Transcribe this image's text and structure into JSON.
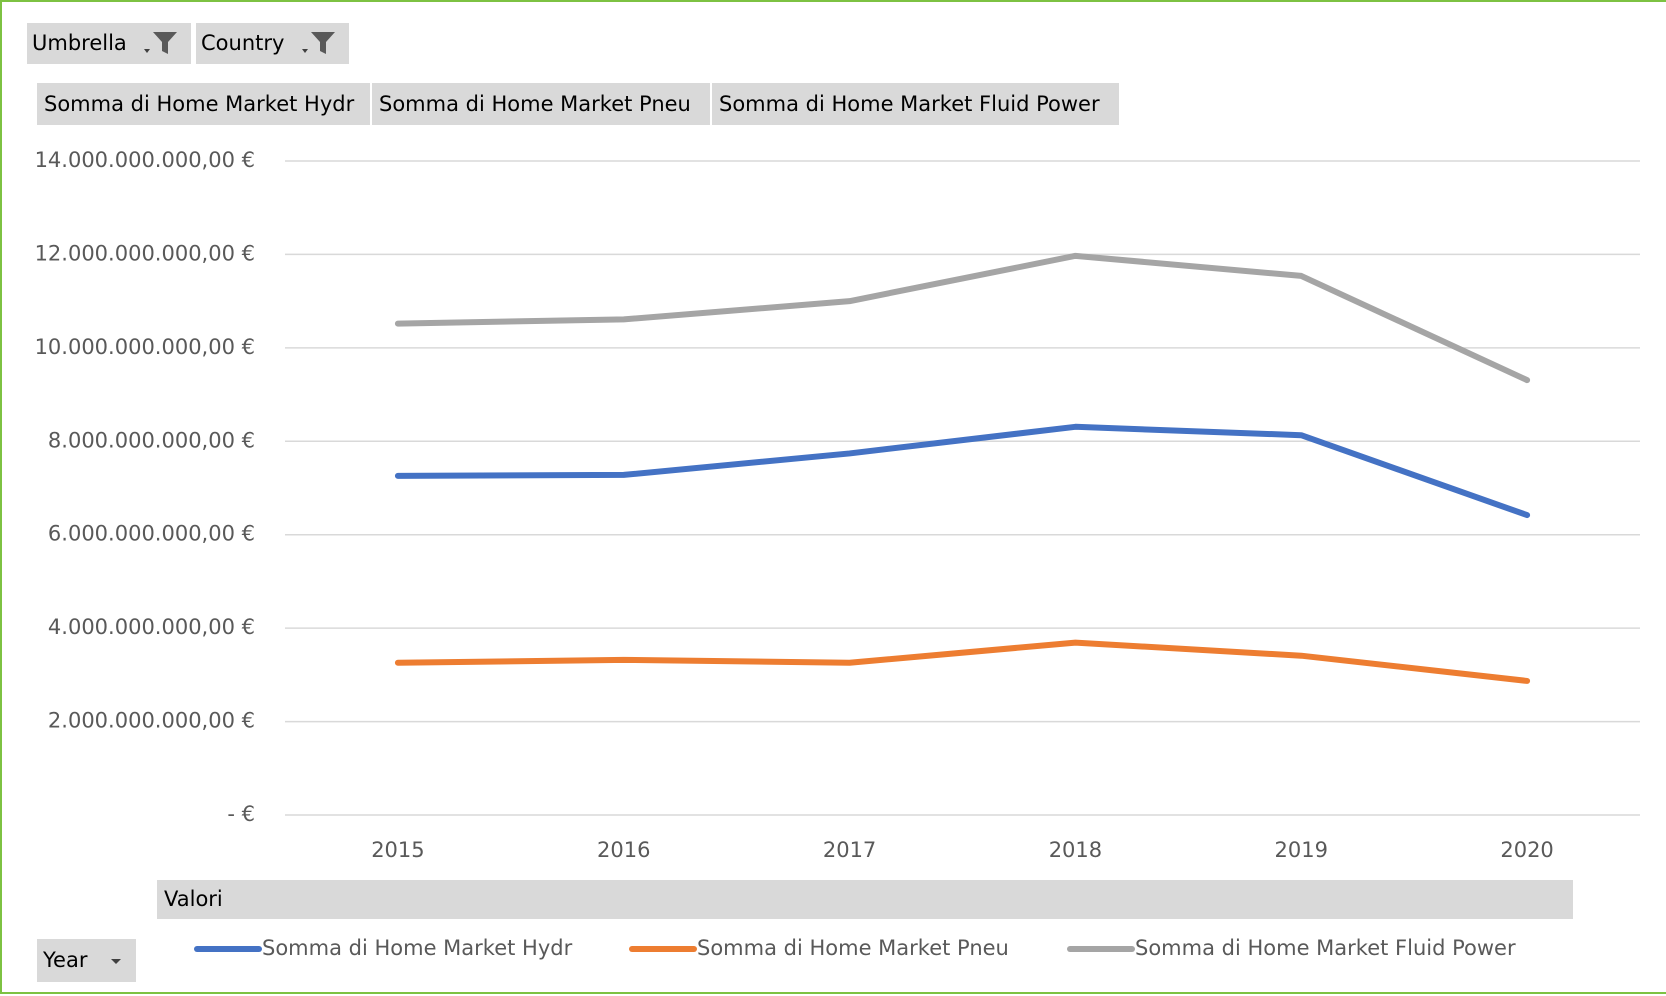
{
  "chart_data": {
    "type": "line",
    "filter_buttons": [
      "Umbrella",
      "Country"
    ],
    "categories": [
      "2015",
      "2016",
      "2017",
      "2018",
      "2019",
      "2020"
    ],
    "series": [
      {
        "name": "Somma di Home Market Hydr",
        "color": "#4472c4",
        "values": [
          7260000000,
          7280000000,
          7740000000,
          8310000000,
          8130000000,
          6420000000
        ]
      },
      {
        "name": "Somma di Home Market Pneu",
        "color": "#ed7d31",
        "values": [
          3260000000,
          3320000000,
          3260000000,
          3690000000,
          3410000000,
          2870000000
        ]
      },
      {
        "name": "Somma di Home Market Fluid Power",
        "color": "#a5a5a5",
        "values": [
          10520000000,
          10610000000,
          11000000000,
          11970000000,
          11540000000,
          9310000000
        ]
      }
    ],
    "ylim": [
      0,
      14000000000
    ],
    "yticks": [
      {
        "value": 0,
        "label": "-   €"
      },
      {
        "value": 2000000000,
        "label": "2.000.000.000,00 €"
      },
      {
        "value": 4000000000,
        "label": "4.000.000.000,00 €"
      },
      {
        "value": 6000000000,
        "label": "6.000.000.000,00 €"
      },
      {
        "value": 8000000000,
        "label": "8.000.000.000,00 €"
      },
      {
        "value": 10000000000,
        "label": "10.000.000.000,00 €"
      },
      {
        "value": 12000000000,
        "label": "12.000.000.000,00 €"
      },
      {
        "value": 14000000000,
        "label": "14.000.000.000,00 €"
      }
    ],
    "grid": true,
    "legend_title": "Valori",
    "axis_button": "Year"
  }
}
